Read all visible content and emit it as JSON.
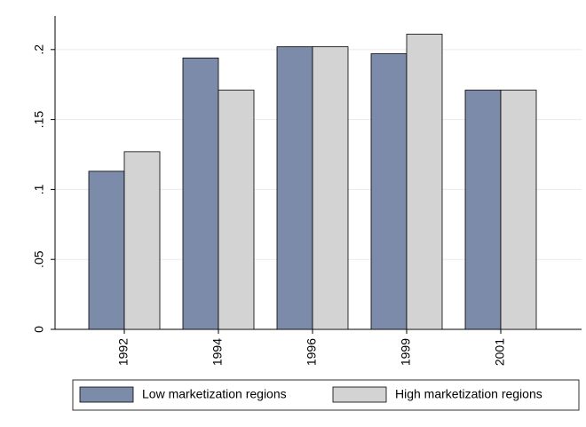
{
  "chart_data": {
    "type": "bar",
    "categories": [
      "1992",
      "1994",
      "1996",
      "1999",
      "2001"
    ],
    "series": [
      {
        "name": "Low marketization regions",
        "color": "#7b8ba9",
        "values": [
          0.113,
          0.194,
          0.202,
          0.197,
          0.171
        ]
      },
      {
        "name": "High marketization regions",
        "color": "#d3d3d3",
        "values": [
          0.127,
          0.171,
          0.202,
          0.211,
          0.171
        ]
      }
    ],
    "ylim": [
      0,
      0.224
    ],
    "yticks": [
      0,
      {
        "value": 0.05,
        "label": ".05"
      },
      {
        "value": 0.1,
        "label": ".1"
      },
      {
        "value": 0.15,
        "label": ".15"
      },
      {
        "value": 0.2,
        "label": ".2"
      }
    ],
    "grid": true
  }
}
